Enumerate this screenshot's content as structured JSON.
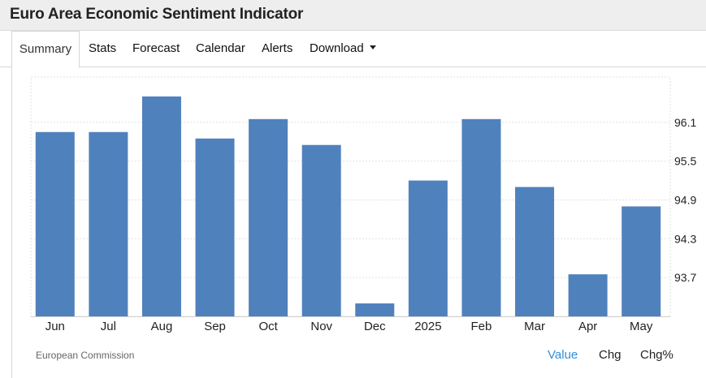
{
  "header": {
    "title": "Euro Area Economic Sentiment Indicator"
  },
  "tabs": [
    {
      "label": "Summary",
      "active": true
    },
    {
      "label": "Stats"
    },
    {
      "label": "Forecast"
    },
    {
      "label": "Calendar"
    },
    {
      "label": "Alerts"
    },
    {
      "label": "Download",
      "has_dropdown": true
    }
  ],
  "footer": {
    "source": "European Commission",
    "toggles": [
      "Value",
      "Chg",
      "Chg%"
    ],
    "selected_toggle": "Value"
  },
  "colors": {
    "bar": "#4f81bd",
    "accent": "#2f8fd8"
  },
  "chart_data": {
    "type": "bar",
    "categories": [
      "Jun",
      "Jul",
      "Aug",
      "Sep",
      "Oct",
      "Nov",
      "Dec",
      "2025",
      "Feb",
      "Mar",
      "Apr",
      "May"
    ],
    "values": [
      95.95,
      95.95,
      96.5,
      95.85,
      96.15,
      95.75,
      93.3,
      95.2,
      96.15,
      95.1,
      93.75,
      94.8
    ],
    "y_ticks": [
      "93.7",
      "94.3",
      "94.9",
      "95.5",
      "96.1"
    ],
    "y_tick_values": [
      93.7,
      94.3,
      94.9,
      95.5,
      96.1
    ],
    "ylim": [
      93.1,
      96.8
    ],
    "title": "",
    "xlabel": "",
    "ylabel": "",
    "grid": true,
    "y_axis_position": "right"
  }
}
